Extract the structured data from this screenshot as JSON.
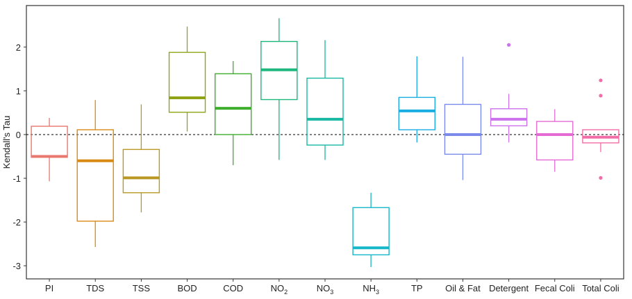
{
  "chart_data": {
    "type": "box",
    "title": "",
    "xlabel": "",
    "ylabel": "Kendall's Tau",
    "ylim": [
      -3.3,
      2.95
    ],
    "yticks": [
      -3,
      -2,
      -1,
      0,
      1,
      2
    ],
    "reference_line": {
      "y": 0,
      "style": "dashed"
    },
    "categories": [
      {
        "label": "PI",
        "sub": ""
      },
      {
        "label": "TDS",
        "sub": ""
      },
      {
        "label": "TSS",
        "sub": ""
      },
      {
        "label": "BOD",
        "sub": ""
      },
      {
        "label": "COD",
        "sub": ""
      },
      {
        "label": "NO",
        "sub": "2"
      },
      {
        "label": "NO",
        "sub": "3"
      },
      {
        "label": "NH",
        "sub": "3"
      },
      {
        "label": "TP",
        "sub": ""
      },
      {
        "label": "Oil & Fat",
        "sub": ""
      },
      {
        "label": "Detergent",
        "sub": ""
      },
      {
        "label": "Fecal Coli",
        "sub": ""
      },
      {
        "label": "Total Coli",
        "sub": ""
      }
    ],
    "boxes": [
      {
        "color": "#E8776D",
        "whisker_low": -1.07,
        "q1": -0.52,
        "median": -0.5,
        "q3": 0.19,
        "whisker_high": 0.38,
        "outliers": []
      },
      {
        "color": "#D98A15",
        "whisker_low": -2.57,
        "q1": -1.98,
        "median": -0.6,
        "q3": 0.11,
        "whisker_high": 0.79,
        "outliers": []
      },
      {
        "color": "#B99722",
        "whisker_low": -1.78,
        "q1": -1.33,
        "median": -0.99,
        "q3": -0.34,
        "whisker_high": 0.69,
        "outliers": []
      },
      {
        "color": "#8FA314",
        "whisker_low": 0.07,
        "q1": 0.51,
        "median": 0.84,
        "q3": 1.88,
        "whisker_high": 2.47,
        "outliers": []
      },
      {
        "color": "#3DAF2C",
        "whisker_low": -0.7,
        "q1": 0.0,
        "median": 0.6,
        "q3": 1.39,
        "whisker_high": 1.68,
        "outliers": []
      },
      {
        "color": "#1CB77D",
        "whisker_low": -0.58,
        "q1": 0.8,
        "median": 1.48,
        "q3": 2.13,
        "whisker_high": 2.66,
        "outliers": []
      },
      {
        "color": "#18B8A3",
        "whisker_low": -0.58,
        "q1": -0.24,
        "median": 0.35,
        "q3": 1.29,
        "whisker_high": 2.16,
        "outliers": []
      },
      {
        "color": "#16B7C9",
        "whisker_low": -3.03,
        "q1": -2.75,
        "median": -2.59,
        "q3": -1.67,
        "whisker_high": -1.33,
        "outliers": []
      },
      {
        "color": "#19ADE2",
        "whisker_low": -0.18,
        "q1": 0.11,
        "median": 0.54,
        "q3": 0.85,
        "whisker_high": 1.79,
        "outliers": []
      },
      {
        "color": "#7C8BEB",
        "whisker_low": -1.04,
        "q1": -0.45,
        "median": 0.0,
        "q3": 0.69,
        "whisker_high": 1.78,
        "outliers": []
      },
      {
        "color": "#CC72EC",
        "whisker_low": -0.18,
        "q1": 0.2,
        "median": 0.35,
        "q3": 0.59,
        "whisker_high": 0.93,
        "outliers": [
          2.05
        ]
      },
      {
        "color": "#E46BD4",
        "whisker_low": -0.85,
        "q1": -0.58,
        "median": 0.0,
        "q3": 0.3,
        "whisker_high": 0.58,
        "outliers": []
      },
      {
        "color": "#F26CA7",
        "whisker_low": -0.4,
        "q1": -0.19,
        "median": -0.06,
        "q3": 0.11,
        "whisker_high": 0.11,
        "outliers": [
          1.24,
          0.89,
          -0.99
        ]
      }
    ]
  }
}
